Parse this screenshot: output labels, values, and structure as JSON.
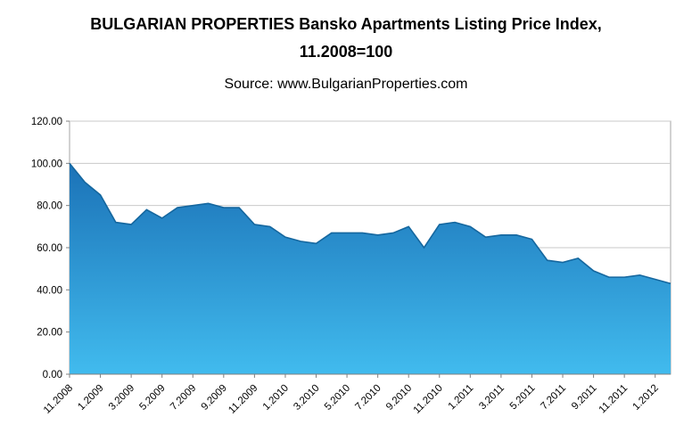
{
  "title": {
    "line1": "BULGARIAN PROPERTIES Bansko Apartments Listing Price Index,",
    "line2": "11.2008=100"
  },
  "source": "Source: www.BulgarianProperties.com",
  "chart_data": {
    "type": "area",
    "title": "BULGARIAN PROPERTIES Bansko Apartments Listing Price Index, 11.2008=100",
    "source": "Source: www.BulgarianProperties.com",
    "x": [
      "11.2008",
      "12.2008",
      "1.2009",
      "2.2009",
      "3.2009",
      "4.2009",
      "5.2009",
      "6.2009",
      "7.2009",
      "8.2009",
      "9.2009",
      "10.2009",
      "11.2009",
      "12.2009",
      "1.2010",
      "2.2010",
      "3.2010",
      "4.2010",
      "5.2010",
      "6.2010",
      "7.2010",
      "8.2010",
      "9.2010",
      "10.2010",
      "11.2010",
      "12.2010",
      "1.2011",
      "2.2011",
      "3.2011",
      "4.2011",
      "5.2011",
      "6.2011",
      "7.2011",
      "8.2011",
      "9.2011",
      "10.2011",
      "11.2011",
      "12.2011",
      "1.2012",
      "2.2012"
    ],
    "values": [
      100,
      91,
      85,
      72,
      71,
      78,
      74,
      79,
      80,
      81,
      79,
      79,
      71,
      70,
      65,
      63,
      62,
      67,
      67,
      67,
      66,
      67,
      70,
      60,
      71,
      72,
      70,
      65,
      66,
      66,
      64,
      54,
      53,
      55,
      49,
      46,
      46,
      47,
      45,
      43
    ],
    "x_tick_every": 2,
    "x_tick_labels": [
      "11.2008",
      "1.2009",
      "3.2009",
      "5.2009",
      "7.2009",
      "9.2009",
      "11.2009",
      "1.2010",
      "3.2010",
      "5.2010",
      "7.2010",
      "9.2010",
      "11.2010",
      "1.2011",
      "3.2011",
      "5.2011",
      "7.2011",
      "9.2011",
      "11.2011",
      "1.2012"
    ],
    "ylim": [
      0,
      120
    ],
    "y_ticks": [
      0,
      20,
      40,
      60,
      80,
      100,
      120
    ],
    "y_tick_format_decimals": 2,
    "grid": true,
    "legend": false,
    "colors": {
      "area_top": "#1b72b7",
      "area_bottom": "#41bbee",
      "line": "#15679f",
      "grid": "#c9c9c9",
      "axis": "#808080",
      "border": "#a6a6a6",
      "text": "#000000"
    }
  }
}
